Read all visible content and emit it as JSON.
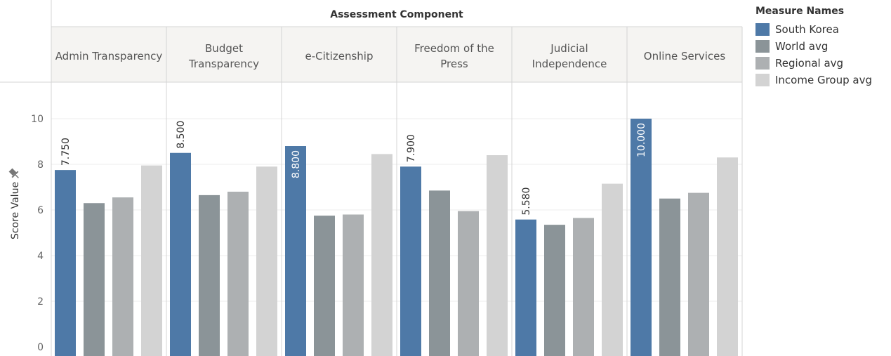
{
  "chart_data": {
    "type": "bar",
    "column_header": "Assessment Component",
    "ylabel": "Score Value",
    "ylim": [
      0,
      10
    ],
    "yticks": [
      0,
      2,
      4,
      6,
      8,
      10
    ],
    "grid": true,
    "legend_position": "right",
    "categories": [
      {
        "label": "Admin Transparency",
        "lines": [
          "Admin Transparency"
        ]
      },
      {
        "label": "Budget Transparency",
        "lines": [
          "Budget",
          "Transparency"
        ]
      },
      {
        "label": "e-Citizenship",
        "lines": [
          "e-Citizenship"
        ]
      },
      {
        "label": "Freedom of the Press",
        "lines": [
          "Freedom of the",
          "Press"
        ]
      },
      {
        "label": "Judicial Independence",
        "lines": [
          "Judicial",
          "Independence"
        ]
      },
      {
        "label": "Online Services",
        "lines": [
          "Online Services"
        ]
      }
    ],
    "series": [
      {
        "name": "South Korea",
        "color": "#4e79a7",
        "values": [
          7.75,
          8.5,
          8.8,
          7.9,
          5.58,
          10.0
        ],
        "labels": [
          "7.750",
          "8.500",
          "8.800",
          "7.900",
          "5.580",
          "10.000"
        ]
      },
      {
        "name": "World avg",
        "color": "#8b9498",
        "values": [
          6.3,
          6.65,
          5.75,
          6.85,
          5.35,
          6.5
        ]
      },
      {
        "name": "Regional avg",
        "color": "#adb0b2",
        "values": [
          6.55,
          6.8,
          5.8,
          5.95,
          5.65,
          6.75
        ]
      },
      {
        "name": "Income Group avg",
        "color": "#d3d3d3",
        "values": [
          7.95,
          7.9,
          8.45,
          8.4,
          7.15,
          8.3
        ]
      }
    ]
  },
  "legend": {
    "title": "Measure Names",
    "items": [
      {
        "label": "South Korea",
        "color": "#4e79a7"
      },
      {
        "label": "World avg",
        "color": "#8b9498"
      },
      {
        "label": "Regional avg",
        "color": "#adb0b2"
      },
      {
        "label": "Income Group avg",
        "color": "#d3d3d3"
      }
    ]
  },
  "axis_pin_icon": "pin-icon"
}
